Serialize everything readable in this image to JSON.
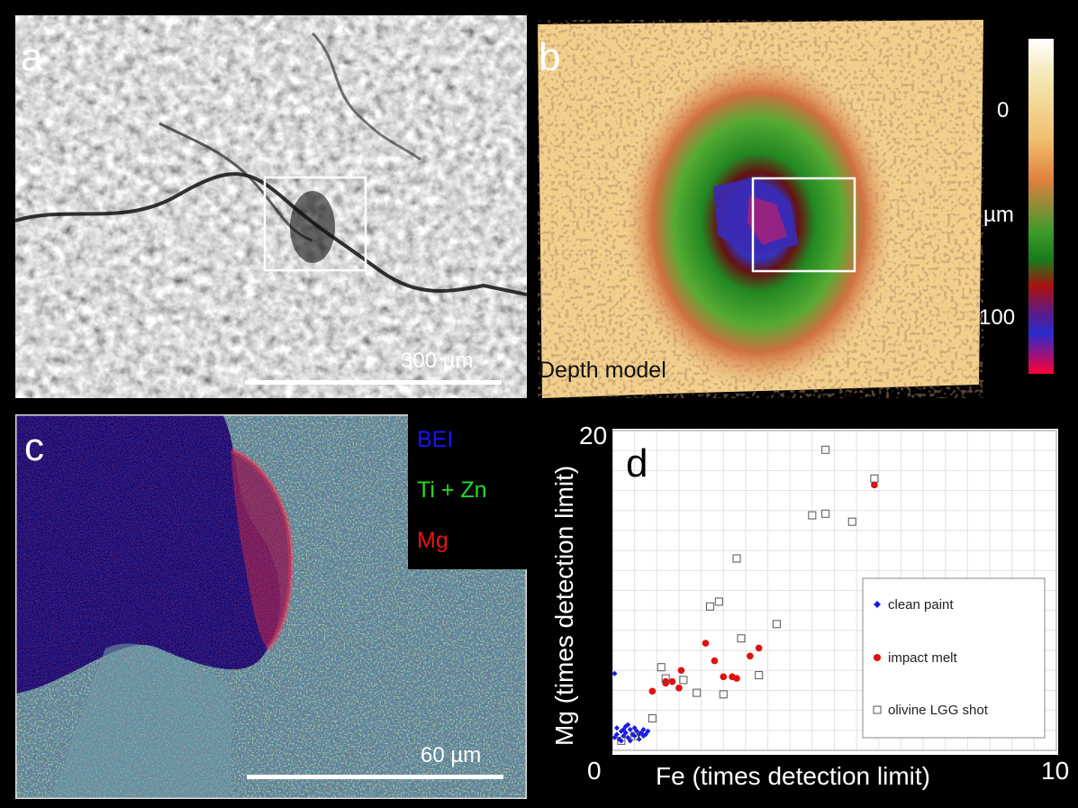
{
  "panels": {
    "a": {
      "label": "a",
      "scale_text": "300 µm"
    },
    "b": {
      "label": "b",
      "caption": "Depth model",
      "colorbar": {
        "label": "µm",
        "ticks": [
          {
            "value": 0,
            "text": "0"
          },
          {
            "value": 100,
            "text": "100"
          }
        ]
      }
    },
    "c": {
      "label": "c",
      "scale_text": "60 µm",
      "legend": [
        {
          "text": "BEI",
          "color": "#1515ff"
        },
        {
          "text": "Ti + Zn",
          "color": "#22dd22"
        },
        {
          "text": "Mg",
          "color": "#ee1111"
        }
      ]
    },
    "d": {
      "label": "d"
    }
  },
  "chart_data": {
    "type": "scatter",
    "xlabel": "Fe (times detection limit)",
    "ylabel": "Mg (times detection limit)",
    "xlim": [
      0,
      10
    ],
    "ylim": [
      0,
      20
    ],
    "x_tick_labels": [
      "0",
      "10"
    ],
    "y_tick_labels": [
      "20"
    ],
    "grid": true,
    "legend_position": "lower-right",
    "series": [
      {
        "name": "clean paint",
        "marker": "diamond",
        "color": "#1a1ae6",
        "points": [
          [
            0.05,
            0.8
          ],
          [
            0.1,
            1.0
          ],
          [
            0.15,
            0.7
          ],
          [
            0.2,
            1.2
          ],
          [
            0.25,
            0.9
          ],
          [
            0.3,
            1.1
          ],
          [
            0.35,
            0.8
          ],
          [
            0.4,
            1.3
          ],
          [
            0.45,
            1.0
          ],
          [
            0.5,
            0.9
          ],
          [
            0.55,
            1.2
          ],
          [
            0.6,
            1.0
          ],
          [
            0.65,
            1.1
          ],
          [
            0.7,
            0.9
          ],
          [
            0.75,
            1.0
          ],
          [
            0.2,
            0.6
          ],
          [
            0.3,
            1.5
          ],
          [
            0.5,
            1.4
          ],
          [
            0.6,
            0.7
          ],
          [
            0.1,
            1.4
          ],
          [
            0.4,
            0.6
          ],
          [
            0.8,
            1.2
          ],
          [
            0.35,
            1.6
          ],
          [
            0.25,
            1.3
          ],
          [
            0.7,
            1.3
          ],
          [
            0.05,
            4.8
          ]
        ]
      },
      {
        "name": "impact melt",
        "marker": "circle",
        "color": "#e01010",
        "points": [
          [
            0.9,
            3.7
          ],
          [
            1.2,
            4.2
          ],
          [
            1.35,
            4.3
          ],
          [
            1.5,
            3.9
          ],
          [
            1.55,
            5.0
          ],
          [
            1.2,
            4.3
          ],
          [
            2.1,
            6.7
          ],
          [
            2.3,
            5.6
          ],
          [
            2.5,
            4.6
          ],
          [
            2.7,
            4.6
          ],
          [
            2.8,
            4.5
          ],
          [
            3.1,
            5.9
          ],
          [
            3.3,
            6.4
          ],
          [
            5.9,
            16.6
          ]
        ]
      },
      {
        "name": "olivine LGG shot",
        "marker": "square-open",
        "color": "#555555",
        "points": [
          [
            0.2,
            0.6
          ],
          [
            0.5,
            0.9
          ],
          [
            0.9,
            2.0
          ],
          [
            1.1,
            5.2
          ],
          [
            1.2,
            4.5
          ],
          [
            1.6,
            4.4
          ],
          [
            1.9,
            3.6
          ],
          [
            2.2,
            9.0
          ],
          [
            2.4,
            9.3
          ],
          [
            2.5,
            3.5
          ],
          [
            2.8,
            12.0
          ],
          [
            2.9,
            7.0
          ],
          [
            3.3,
            4.7
          ],
          [
            3.7,
            7.9
          ],
          [
            4.5,
            14.7
          ],
          [
            4.8,
            18.8
          ],
          [
            4.8,
            14.8
          ],
          [
            5.4,
            14.3
          ],
          [
            5.9,
            17.0
          ]
        ]
      }
    ]
  }
}
